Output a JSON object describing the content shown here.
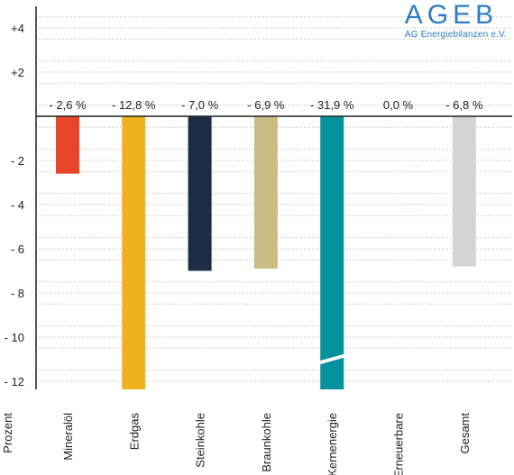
{
  "logo": {
    "word": "AGEB",
    "subtitle": "AG Energiebilanzen e.V.",
    "color": "#2b7cc3"
  },
  "chart_data": {
    "type": "bar",
    "ylabel": "Prozent",
    "ylim": [
      -12.3,
      4.6
    ],
    "y_ticks": [
      {
        "value": 4,
        "label": "+4"
      },
      {
        "value": 2,
        "label": "+2"
      },
      {
        "value": 0,
        "label": ""
      },
      {
        "value": -2,
        "label": "- 2"
      },
      {
        "value": -4,
        "label": "- 4"
      },
      {
        "value": -6,
        "label": "- 6"
      },
      {
        "value": -8,
        "label": "- 8"
      },
      {
        "value": -10,
        "label": "- 10"
      },
      {
        "value": -12,
        "label": "- 12"
      }
    ],
    "grid": true,
    "categories": [
      "Mineralöl",
      "Erdgas",
      "Steinkohle",
      "Braunkohle",
      "Kernenergie",
      "Erneuerbare",
      "Gesamt"
    ],
    "values": [
      -2.6,
      -12.8,
      -7.0,
      -6.9,
      -31.9,
      0.0,
      -6.8
    ],
    "value_labels": [
      "- 2,6 %",
      "- 12,8 %",
      "- 7,0 %",
      "- 6,9 %",
      "- 31,9 %",
      "0,0 %",
      "- 6,8 %"
    ],
    "colors": [
      "#e8462b",
      "#f0b11f",
      "#1c2d45",
      "#c8bd84",
      "#05929e",
      "#ffffff",
      "#d4d4d4"
    ],
    "truncated_bars": [
      "Kernenergie"
    ]
  }
}
